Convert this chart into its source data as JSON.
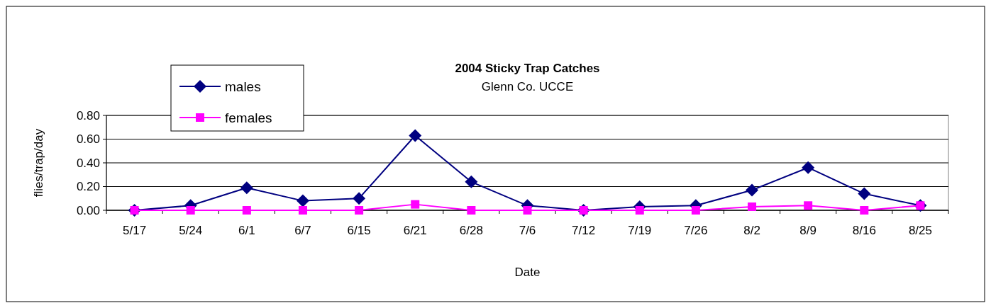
{
  "chart_data": {
    "type": "line",
    "title": "2004 Sticky Trap Catches",
    "subtitle": "Glenn Co. UCCE",
    "xlabel": "Date",
    "ylabel": "flies/trap/day",
    "categories": [
      "5/17",
      "5/24",
      "6/1",
      "6/7",
      "6/15",
      "6/21",
      "6/28",
      "7/6",
      "7/12",
      "7/19",
      "7/26",
      "8/2",
      "8/9",
      "8/16",
      "8/25"
    ],
    "series": [
      {
        "name": "males",
        "color": "#000080",
        "marker": "diamond",
        "values": [
          0,
          0.04,
          0.19,
          0.08,
          0.1,
          0.63,
          0.24,
          0.04,
          0,
          0.03,
          0.04,
          0.17,
          0.36,
          0.14,
          0.04
        ]
      },
      {
        "name": "females",
        "color": "#ff00ff",
        "marker": "square",
        "values": [
          0,
          0,
          0,
          0,
          0,
          0.05,
          0,
          0,
          0,
          0,
          0,
          0.03,
          0.04,
          0,
          0.04
        ]
      }
    ],
    "ylim": [
      0,
      0.8
    ],
    "yticks": [
      {
        "value": 0,
        "label": "0.00"
      },
      {
        "value": 0.2,
        "label": "0.20"
      },
      {
        "value": 0.4,
        "label": "0.40"
      },
      {
        "value": 0.6,
        "label": "0.60"
      },
      {
        "value": 0.8,
        "label": "0.80"
      }
    ],
    "grid": "y",
    "legend": "top left"
  }
}
